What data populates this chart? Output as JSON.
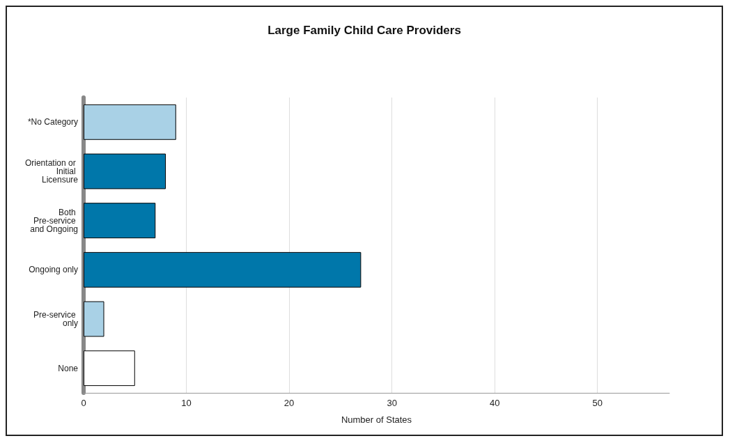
{
  "chart_data": {
    "type": "bar",
    "orientation": "horizontal",
    "title": "Large Family Child Care Providers",
    "xlabel": "Number of States",
    "categories": [
      "*No Category",
      "Orientation or Initial Licensure",
      "Both Pre-service and Ongoing",
      "Ongoing only",
      "Pre-service only",
      "None"
    ],
    "values": [
      9,
      8,
      7,
      27,
      2,
      5
    ],
    "colors": [
      "#a9d1e6",
      "#0077aa",
      "#0077aa",
      "#0077aa",
      "#a9d1e6",
      "#ffffff"
    ],
    "xlim": [
      0,
      57
    ],
    "xticks": [
      0,
      10,
      20,
      30,
      40,
      50
    ],
    "grid": "x"
  }
}
